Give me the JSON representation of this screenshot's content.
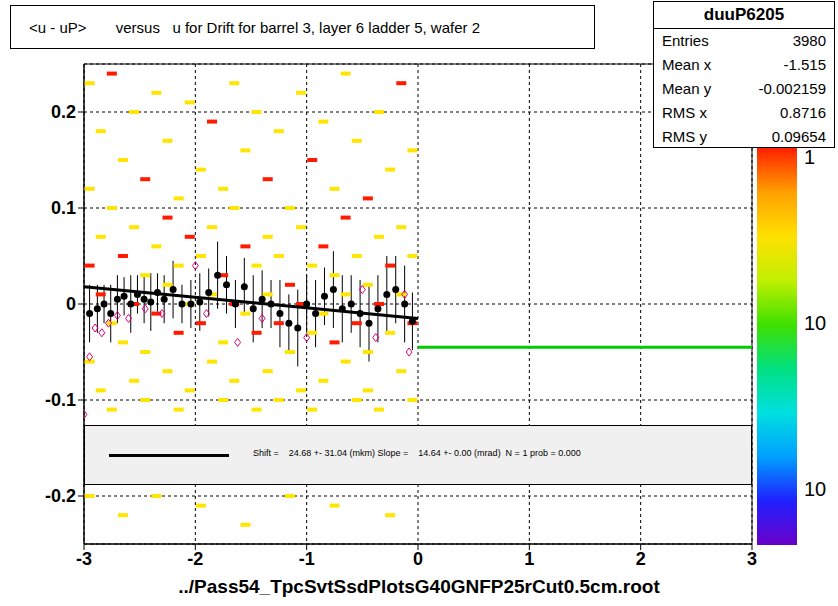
{
  "chart_data": {
    "type": "scatter",
    "title": "<u - uP>       versus   u for Drift for barrel 3, layer 6 ladder 5, wafer 2",
    "x_label": "../Pass54_TpcSvtSsdPlotsG40GNFP25rCut0.5cm.root",
    "xlim": [
      -3,
      3
    ],
    "xticks": [
      -3,
      -2,
      -1,
      0,
      1,
      2,
      3
    ],
    "ylim": [
      -0.25,
      0.25
    ],
    "yticks": [
      -0.2,
      -0.1,
      0,
      0.1,
      0.2
    ],
    "grid": true,
    "stats": {
      "title": "duuP6205",
      "rows": [
        {
          "label": "Entries",
          "value": 3980
        },
        {
          "label": "Mean x",
          "value": -1.515
        },
        {
          "label": "Mean y",
          "value": -0.002159
        },
        {
          "label": "RMS x",
          "value": 0.8716
        },
        {
          "label": "RMS y",
          "value": 0.09654
        }
      ]
    },
    "fit_text": "Shift =    24.68 +- 31.04 (mkm) Slope =    14.64 +- 0.00 (mrad)  N = 1 prob = 0.000",
    "colorbar_labels": [
      "1",
      "10",
      "10"
    ],
    "cells": {
      "colors": [
        "#ffe600",
        "#ff1a00"
      ],
      "points": [
        [
          -2.95,
          0.23,
          1
        ],
        [
          -2.95,
          0.12,
          1
        ],
        [
          -2.95,
          0.04,
          2
        ],
        [
          -2.95,
          -0.06,
          1
        ],
        [
          -2.95,
          -0.2,
          1
        ],
        [
          -2.85,
          0.18,
          1
        ],
        [
          -2.85,
          0.07,
          1
        ],
        [
          -2.85,
          0.01,
          2
        ],
        [
          -2.85,
          -0.09,
          1
        ],
        [
          -2.75,
          0.24,
          2
        ],
        [
          -2.75,
          0.1,
          1
        ],
        [
          -2.75,
          -0.02,
          1
        ],
        [
          -2.75,
          -0.11,
          1
        ],
        [
          -2.65,
          0.15,
          1
        ],
        [
          -2.65,
          0.05,
          2
        ],
        [
          -2.65,
          -0.04,
          1
        ],
        [
          -2.65,
          -0.22,
          1
        ],
        [
          -2.55,
          0.2,
          1
        ],
        [
          -2.55,
          0.08,
          1
        ],
        [
          -2.55,
          0,
          2
        ],
        [
          -2.55,
          -0.08,
          1
        ],
        [
          -2.45,
          0.13,
          2
        ],
        [
          -2.45,
          0.03,
          1
        ],
        [
          -2.45,
          -0.05,
          1
        ],
        [
          -2.45,
          -0.1,
          1
        ],
        [
          -2.35,
          0.22,
          1
        ],
        [
          -2.35,
          0.06,
          1
        ],
        [
          -2.35,
          -0.01,
          2
        ],
        [
          -2.35,
          -0.2,
          1
        ],
        [
          -2.25,
          0.17,
          1
        ],
        [
          -2.25,
          0.09,
          2
        ],
        [
          -2.25,
          0.02,
          1
        ],
        [
          -2.25,
          -0.07,
          1
        ],
        [
          -2.15,
          0.11,
          1
        ],
        [
          -2.15,
          0.04,
          1
        ],
        [
          -2.15,
          -0.03,
          2
        ],
        [
          -2.15,
          -0.11,
          1
        ],
        [
          -2.05,
          0.21,
          1
        ],
        [
          -2.05,
          0.07,
          2
        ],
        [
          -2.05,
          0,
          1
        ],
        [
          -2.05,
          -0.09,
          1
        ],
        [
          -1.95,
          0.14,
          1
        ],
        [
          -1.95,
          0.05,
          1
        ],
        [
          -1.95,
          -0.02,
          2
        ],
        [
          -1.95,
          -0.21,
          1
        ],
        [
          -1.85,
          0.19,
          2
        ],
        [
          -1.85,
          0.08,
          1
        ],
        [
          -1.85,
          0.01,
          1
        ],
        [
          -1.85,
          -0.06,
          1
        ],
        [
          -1.75,
          0.12,
          1
        ],
        [
          -1.75,
          0.03,
          2
        ],
        [
          -1.75,
          -0.04,
          1
        ],
        [
          -1.75,
          -0.1,
          1
        ],
        [
          -1.65,
          0.23,
          1
        ],
        [
          -1.65,
          0.1,
          1
        ],
        [
          -1.65,
          0,
          2
        ],
        [
          -1.65,
          -0.08,
          1
        ],
        [
          -1.55,
          0.16,
          1
        ],
        [
          -1.55,
          0.06,
          2
        ],
        [
          -1.55,
          -0.01,
          1
        ],
        [
          -1.55,
          -0.23,
          1
        ],
        [
          -1.45,
          0.2,
          1
        ],
        [
          -1.45,
          0.04,
          1
        ],
        [
          -1.45,
          -0.03,
          2
        ],
        [
          -1.45,
          -0.11,
          1
        ],
        [
          -1.35,
          0.13,
          2
        ],
        [
          -1.35,
          0.07,
          1
        ],
        [
          -1.35,
          0.01,
          1
        ],
        [
          -1.35,
          -0.07,
          1
        ],
        [
          -1.25,
          0.18,
          1
        ],
        [
          -1.25,
          0.05,
          1
        ],
        [
          -1.25,
          -0.02,
          2
        ],
        [
          -1.25,
          -0.1,
          1
        ],
        [
          -1.15,
          0.1,
          1
        ],
        [
          -1.15,
          0.02,
          2
        ],
        [
          -1.15,
          -0.05,
          1
        ],
        [
          -1.15,
          -0.2,
          1
        ],
        [
          -1.05,
          0.22,
          1
        ],
        [
          -1.05,
          0.08,
          1
        ],
        [
          -1.05,
          0,
          2
        ],
        [
          -1.05,
          -0.09,
          1
        ],
        [
          -0.95,
          0.15,
          2
        ],
        [
          -0.95,
          0.04,
          1
        ],
        [
          -0.95,
          -0.03,
          1
        ],
        [
          -0.95,
          -0.11,
          1
        ],
        [
          -0.85,
          0.19,
          1
        ],
        [
          -0.85,
          0.06,
          2
        ],
        [
          -0.85,
          -0.01,
          1
        ],
        [
          -0.85,
          -0.08,
          1
        ],
        [
          -0.75,
          0.12,
          1
        ],
        [
          -0.75,
          0.03,
          1
        ],
        [
          -0.75,
          -0.04,
          2
        ],
        [
          -0.75,
          -0.21,
          1
        ],
        [
          -0.65,
          0.24,
          1
        ],
        [
          -0.65,
          0.09,
          2
        ],
        [
          -0.65,
          0.01,
          1
        ],
        [
          -0.65,
          -0.06,
          1
        ],
        [
          -0.55,
          0.17,
          1
        ],
        [
          -0.55,
          0.05,
          1
        ],
        [
          -0.55,
          -0.02,
          2
        ],
        [
          -0.55,
          -0.1,
          1
        ],
        [
          -0.45,
          0.11,
          2
        ],
        [
          -0.45,
          0.02,
          1
        ],
        [
          -0.45,
          -0.05,
          1
        ],
        [
          -0.45,
          -0.09,
          1
        ],
        [
          -0.35,
          0.2,
          1
        ],
        [
          -0.35,
          0.07,
          1
        ],
        [
          -0.35,
          0,
          2
        ],
        [
          -0.35,
          -0.11,
          1
        ],
        [
          -0.25,
          0.14,
          1
        ],
        [
          -0.25,
          0.04,
          2
        ],
        [
          -0.25,
          -0.03,
          1
        ],
        [
          -0.25,
          -0.22,
          1
        ],
        [
          -0.15,
          0.23,
          2
        ],
        [
          -0.15,
          0.08,
          1
        ],
        [
          -0.15,
          0.01,
          1
        ],
        [
          -0.15,
          -0.07,
          1
        ],
        [
          -0.05,
          0.16,
          1
        ],
        [
          -0.05,
          0.05,
          1
        ],
        [
          -0.05,
          -0.02,
          2
        ],
        [
          -0.05,
          -0.1,
          1
        ]
      ]
    },
    "series": [
      {
        "type": "profile",
        "color": "#000000",
        "marker": "circle",
        "x": [
          -2.95,
          -2.88,
          -2.82,
          -2.76,
          -2.7,
          -2.64,
          -2.58,
          -2.52,
          -2.46,
          -2.4,
          -2.34,
          -2.28,
          -2.2,
          -2.12,
          -2.04,
          -1.96,
          -1.88,
          -1.8,
          -1.72,
          -1.64,
          -1.56,
          -1.48,
          -1.4,
          -1.32,
          -1.24,
          -1.16,
          -1.08,
          -1,
          -0.92,
          -0.84,
          -0.76,
          -0.68,
          -0.6,
          -0.52,
          -0.44,
          -0.36,
          -0.28,
          -0.2,
          -0.12,
          -0.05
        ],
        "values": [
          -0.01,
          -0.005,
          0,
          -0.01,
          0.005,
          0.008,
          0,
          0.01,
          0.005,
          0.002,
          0.012,
          0.005,
          0.015,
          0,
          0,
          0.002,
          0.012,
          0.03,
          0.02,
          0,
          0.018,
          -0.005,
          0.005,
          0,
          -0.01,
          -0.02,
          -0.025,
          0,
          -0.01,
          0.008,
          0.015,
          -0.005,
          0,
          -0.01,
          -0.02,
          -0.005,
          0.01,
          0.015,
          0,
          -0.018
        ],
        "errors": [
          0.03,
          0.025,
          0.02,
          0.03,
          0.025,
          0.02,
          0.03,
          0.02,
          0.025,
          0.03,
          0.02,
          0.025,
          0.03,
          0.02,
          0.025,
          0.03,
          0.025,
          0.035,
          0.03,
          0.025,
          0.03,
          0.035,
          0.03,
          0.025,
          0.035,
          0.03,
          0.04,
          0.03,
          0.035,
          0.03,
          0.04,
          0.035,
          0.03,
          0.035,
          0.04,
          0.035,
          0.04,
          0.035,
          0.04,
          0.03
        ]
      },
      {
        "type": "points",
        "color": "#e0007a",
        "marker": "diamond",
        "x": [
          -3,
          -2.95,
          -2.9,
          -2.84,
          -2.78,
          -2.7,
          -2.6,
          -2.45,
          -2.3,
          -2,
          -1.9,
          -1.62,
          -1.4,
          -1,
          -0.5,
          -0.38,
          -0.12,
          -0.08
        ],
        "values": [
          -0.115,
          -0.055,
          -0.025,
          -0.03,
          -0.02,
          -0.012,
          -0.015,
          -0.005,
          -0.01,
          0.04,
          -0.01,
          -0.04,
          -0.015,
          -0.035,
          0.015,
          -0.035,
          0.01,
          -0.05
        ]
      },
      {
        "type": "line",
        "color": "#000000",
        "line_style": "solid",
        "x": [
          -3,
          0
        ],
        "values": [
          0.018,
          -0.015
        ]
      },
      {
        "type": "line",
        "color": "#00cc00",
        "line_style": "solid",
        "x": [
          0,
          3
        ],
        "values": [
          -0.045,
          -0.045
        ]
      }
    ]
  }
}
